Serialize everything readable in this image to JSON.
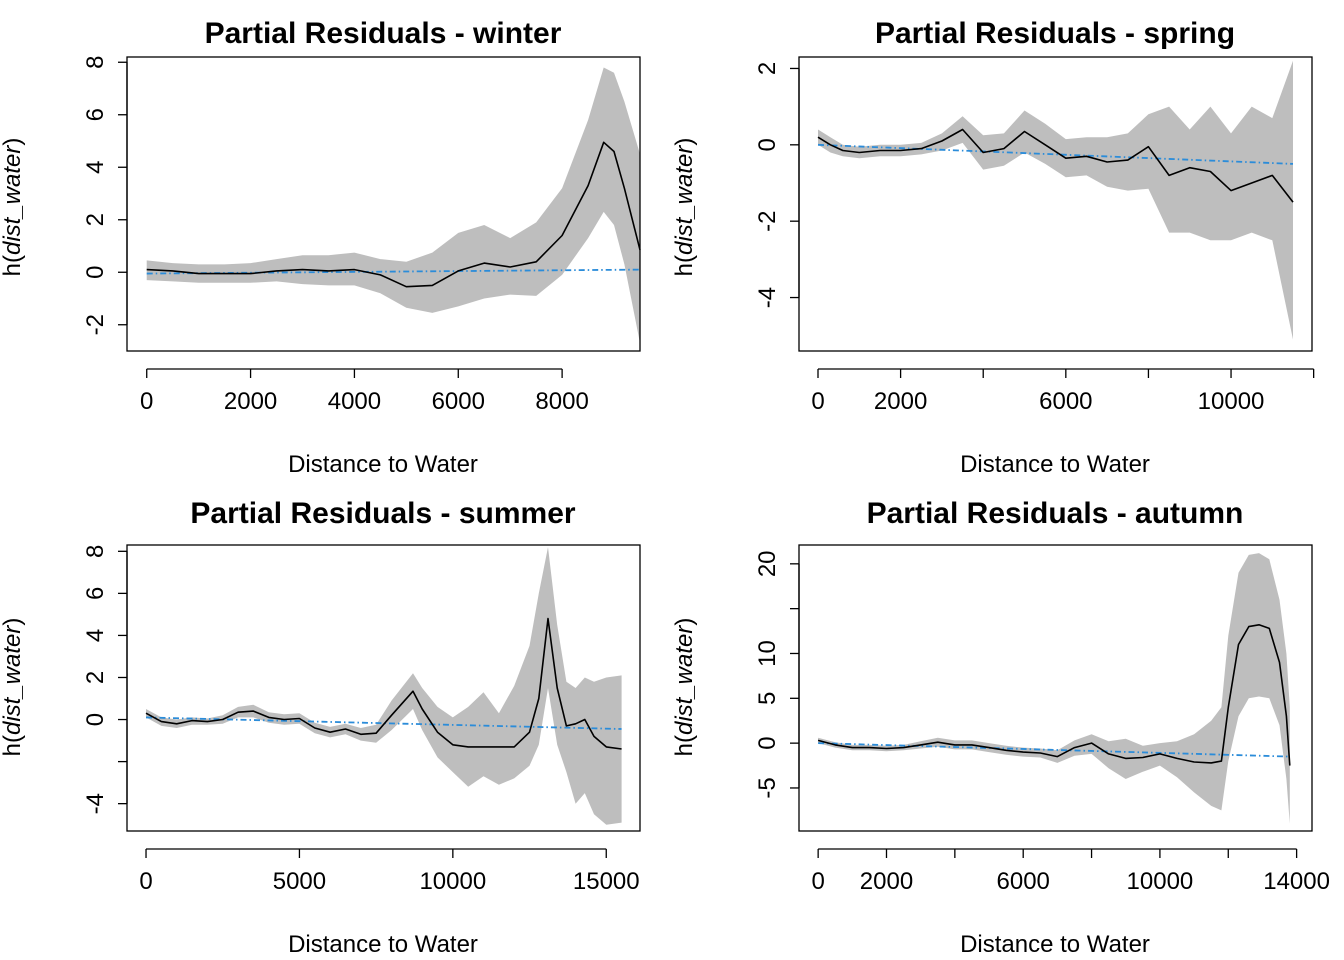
{
  "chart_data": [
    {
      "type": "line",
      "title": "Partial Residuals - winter",
      "xlabel": "Distance to Water",
      "ylabel": {
        "prefix": "h(",
        "var": "dist_water",
        "suffix": ")"
      },
      "xlim": [
        -380,
        9500
      ],
      "ylim": [
        -3.0,
        8.2
      ],
      "xticks": [
        0,
        2000,
        4000,
        6000,
        8000
      ],
      "yticks": [
        -2,
        0,
        2,
        4,
        6,
        8
      ],
      "series": [
        {
          "role": "fit",
          "x": [
            0,
            500,
            1000,
            1500,
            2000,
            2500,
            3000,
            3500,
            4000,
            4500,
            5000,
            5500,
            6000,
            6500,
            7000,
            7500,
            8000,
            8500,
            8800,
            9000,
            9200,
            9500
          ],
          "values": [
            0.1,
            0.05,
            -0.05,
            -0.05,
            -0.05,
            0.05,
            0.1,
            0.05,
            0.1,
            -0.1,
            -0.55,
            -0.5,
            0.05,
            0.35,
            0.2,
            0.4,
            1.4,
            3.3,
            4.95,
            4.6,
            3.2,
            0.85
          ]
        },
        {
          "role": "band-upper",
          "x": [
            0,
            500,
            1000,
            1500,
            2000,
            2500,
            3000,
            3500,
            4000,
            4500,
            5000,
            5500,
            6000,
            6500,
            7000,
            7500,
            8000,
            8500,
            8800,
            9000,
            9200,
            9500
          ],
          "values": [
            0.45,
            0.35,
            0.3,
            0.3,
            0.35,
            0.5,
            0.65,
            0.65,
            0.75,
            0.5,
            0.4,
            0.75,
            1.5,
            1.8,
            1.3,
            1.9,
            3.2,
            5.8,
            7.8,
            7.6,
            6.5,
            4.5
          ]
        },
        {
          "role": "band-lower",
          "x": [
            0,
            500,
            1000,
            1500,
            2000,
            2500,
            3000,
            3500,
            4000,
            4500,
            5000,
            5500,
            6000,
            6500,
            7000,
            7500,
            8000,
            8500,
            8800,
            9000,
            9200,
            9500
          ],
          "values": [
            -0.3,
            -0.35,
            -0.4,
            -0.4,
            -0.4,
            -0.35,
            -0.45,
            -0.5,
            -0.5,
            -0.8,
            -1.35,
            -1.55,
            -1.3,
            -1.0,
            -0.85,
            -0.9,
            -0.1,
            1.3,
            2.3,
            1.8,
            0.3,
            -2.7
          ]
        },
        {
          "role": "linear",
          "x": [
            0,
            9500
          ],
          "values": [
            -0.05,
            0.1
          ]
        }
      ]
    },
    {
      "type": "line",
      "title": "Partial Residuals - spring",
      "xlabel": "Distance to Water",
      "ylabel": {
        "prefix": "h(",
        "var": "dist_water",
        "suffix": ")"
      },
      "xlim": [
        -460,
        11960
      ],
      "ylim": [
        -5.4,
        2.3
      ],
      "xticks": [
        0,
        2000,
        4000,
        6000,
        8000,
        10000,
        12000
      ],
      "xtick_labels": [
        "0",
        "2000",
        "",
        "6000",
        "",
        "10000",
        ""
      ],
      "yticks": [
        -4,
        -2,
        0,
        2
      ],
      "series": [
        {
          "role": "fit",
          "x": [
            0,
            300,
            600,
            1000,
            1500,
            2000,
            2500,
            3000,
            3500,
            4000,
            4500,
            5000,
            5500,
            6000,
            6500,
            7000,
            7500,
            8000,
            8500,
            9000,
            9500,
            10000,
            10500,
            11000,
            11500
          ],
          "values": [
            0.2,
            0.0,
            -0.15,
            -0.2,
            -0.15,
            -0.15,
            -0.1,
            0.1,
            0.4,
            -0.2,
            -0.1,
            0.35,
            0.0,
            -0.35,
            -0.3,
            -0.45,
            -0.4,
            -0.05,
            -0.8,
            -0.6,
            -0.7,
            -1.2,
            -1.0,
            -0.8,
            -1.5
          ]
        },
        {
          "role": "band-upper",
          "x": [
            0,
            300,
            600,
            1000,
            1500,
            2000,
            2500,
            3000,
            3500,
            4000,
            4500,
            5000,
            5500,
            6000,
            6500,
            7000,
            7500,
            8000,
            8500,
            9000,
            9500,
            10000,
            10500,
            11000,
            11500
          ],
          "values": [
            0.4,
            0.2,
            0.0,
            -0.05,
            0.0,
            0.0,
            0.05,
            0.3,
            0.75,
            0.25,
            0.3,
            0.9,
            0.55,
            0.15,
            0.2,
            0.2,
            0.3,
            0.8,
            1.0,
            0.4,
            1.0,
            0.3,
            1.0,
            0.7,
            2.2
          ]
        },
        {
          "role": "band-lower",
          "x": [
            0,
            300,
            600,
            1000,
            1500,
            2000,
            2500,
            3000,
            3500,
            4000,
            4500,
            5000,
            5500,
            6000,
            6500,
            7000,
            7500,
            8000,
            8500,
            9000,
            9500,
            10000,
            10500,
            11000,
            11500
          ],
          "values": [
            0.0,
            -0.2,
            -0.3,
            -0.35,
            -0.3,
            -0.3,
            -0.25,
            -0.15,
            0.05,
            -0.65,
            -0.55,
            -0.2,
            -0.5,
            -0.85,
            -0.8,
            -1.1,
            -1.2,
            -1.15,
            -2.3,
            -2.3,
            -2.5,
            -2.5,
            -2.3,
            -2.5,
            -5.1
          ]
        },
        {
          "role": "linear",
          "x": [
            0,
            11500
          ],
          "values": [
            0.0,
            -0.5
          ]
        }
      ]
    },
    {
      "type": "line",
      "title": "Partial Residuals - summer",
      "xlabel": "Distance to Water",
      "ylabel": {
        "prefix": "h(",
        "var": "dist_water",
        "suffix": ")"
      },
      "xlim": [
        -620,
        16100
      ],
      "ylim": [
        -5.3,
        8.3
      ],
      "xticks": [
        0,
        5000,
        10000,
        15000
      ],
      "yticks": [
        -4,
        -2,
        0,
        2,
        4,
        6,
        8
      ],
      "ytick_labels": [
        "-4",
        "",
        "0",
        "2",
        "4",
        "6",
        "8"
      ],
      "series": [
        {
          "role": "fit",
          "x": [
            0,
            500,
            1000,
            1500,
            2000,
            2500,
            3000,
            3500,
            4000,
            4500,
            5000,
            5500,
            6000,
            6500,
            7000,
            7500,
            8000,
            8700,
            9000,
            9500,
            10000,
            10500,
            11000,
            11500,
            12000,
            12500,
            12800,
            13100,
            13400,
            13700,
            14000,
            14300,
            14600,
            15000,
            15500
          ],
          "values": [
            0.3,
            -0.1,
            -0.2,
            -0.05,
            -0.1,
            0.0,
            0.35,
            0.4,
            0.1,
            0.0,
            0.05,
            -0.4,
            -0.6,
            -0.45,
            -0.7,
            -0.65,
            0.2,
            1.35,
            0.5,
            -0.6,
            -1.2,
            -1.3,
            -1.3,
            -1.3,
            -1.3,
            -0.6,
            1.0,
            4.8,
            1.5,
            -0.3,
            -0.2,
            0.0,
            -0.8,
            -1.3,
            -1.4
          ]
        },
        {
          "role": "band-upper",
          "x": [
            0,
            500,
            1000,
            1500,
            2000,
            2500,
            3000,
            3500,
            4000,
            4500,
            5000,
            5500,
            6000,
            6500,
            7000,
            7500,
            8000,
            8700,
            9000,
            9500,
            10000,
            10500,
            11000,
            11500,
            12000,
            12500,
            12800,
            13100,
            13400,
            13700,
            14000,
            14300,
            14600,
            15000,
            15500
          ],
          "values": [
            0.5,
            0.1,
            0.0,
            0.1,
            0.05,
            0.2,
            0.6,
            0.7,
            0.35,
            0.25,
            0.3,
            -0.15,
            -0.35,
            -0.2,
            -0.4,
            -0.25,
            0.9,
            2.2,
            1.5,
            0.6,
            0.1,
            0.6,
            1.3,
            0.3,
            1.6,
            3.5,
            6.0,
            8.2,
            4.5,
            1.8,
            1.5,
            2.0,
            1.8,
            2.0,
            2.1
          ]
        },
        {
          "role": "band-lower",
          "x": [
            0,
            500,
            1000,
            1500,
            2000,
            2500,
            3000,
            3500,
            4000,
            4500,
            5000,
            5500,
            6000,
            6500,
            7000,
            7500,
            8000,
            8700,
            9000,
            9500,
            10000,
            10500,
            11000,
            11500,
            12000,
            12500,
            12800,
            13100,
            13400,
            13700,
            14000,
            14300,
            14600,
            15000,
            15500
          ],
          "values": [
            0.1,
            -0.3,
            -0.4,
            -0.25,
            -0.25,
            -0.2,
            0.1,
            0.1,
            -0.15,
            -0.25,
            -0.2,
            -0.65,
            -0.85,
            -0.7,
            -1.0,
            -1.1,
            -0.5,
            0.5,
            -0.5,
            -1.8,
            -2.5,
            -3.2,
            -2.7,
            -3.1,
            -2.8,
            -2.2,
            -1.2,
            1.5,
            -1.2,
            -2.5,
            -4.0,
            -3.5,
            -4.5,
            -5.0,
            -4.9
          ]
        },
        {
          "role": "linear",
          "x": [
            0,
            15500
          ],
          "values": [
            0.1,
            -0.45
          ]
        }
      ]
    },
    {
      "type": "line",
      "title": "Partial Residuals - autumn",
      "xlabel": "Distance to Water",
      "ylabel": {
        "prefix": "h(",
        "var": "dist_water",
        "suffix": ")"
      },
      "xlim": [
        -560,
        14450
      ],
      "ylim": [
        -9.8,
        22.1
      ],
      "xticks": [
        0,
        2000,
        4000,
        6000,
        8000,
        10000,
        12000,
        14000
      ],
      "xtick_labels": [
        "0",
        "2000",
        "",
        "6000",
        "",
        "10000",
        "",
        "14000"
      ],
      "yticks": [
        -5,
        0,
        5,
        10,
        15,
        20
      ],
      "ytick_labels": [
        "-5",
        "0",
        "5",
        "10",
        "",
        "20"
      ],
      "series": [
        {
          "role": "fit",
          "x": [
            0,
            500,
            1000,
            1500,
            2000,
            2500,
            3000,
            3500,
            4000,
            4500,
            5000,
            5500,
            6000,
            6500,
            7000,
            7500,
            8000,
            8500,
            9000,
            9500,
            10000,
            10500,
            11000,
            11500,
            11800,
            12000,
            12300,
            12600,
            12900,
            13200,
            13500,
            13700,
            13800
          ],
          "values": [
            0.3,
            -0.2,
            -0.5,
            -0.5,
            -0.6,
            -0.5,
            -0.2,
            0.1,
            -0.2,
            -0.2,
            -0.5,
            -0.8,
            -1.0,
            -1.1,
            -1.5,
            -0.5,
            0.0,
            -1.2,
            -1.7,
            -1.6,
            -1.2,
            -1.7,
            -2.1,
            -2.2,
            -2.0,
            4.0,
            11.0,
            13.0,
            13.2,
            12.8,
            9.0,
            3.0,
            -2.5
          ]
        },
        {
          "role": "band-upper",
          "x": [
            0,
            500,
            1000,
            1500,
            2000,
            2500,
            3000,
            3500,
            4000,
            4500,
            5000,
            5500,
            6000,
            6500,
            7000,
            7500,
            8000,
            8500,
            9000,
            9500,
            10000,
            10500,
            11000,
            11500,
            11800,
            12000,
            12300,
            12600,
            12900,
            13200,
            13500,
            13700,
            13800
          ],
          "values": [
            0.6,
            0.1,
            -0.2,
            -0.2,
            -0.3,
            -0.2,
            0.2,
            0.6,
            0.3,
            0.3,
            0.0,
            -0.3,
            -0.5,
            -0.6,
            -0.8,
            0.3,
            1.0,
            0.2,
            0.5,
            -0.3,
            0.0,
            0.2,
            1.0,
            2.5,
            4.0,
            12.0,
            19.0,
            21.0,
            21.2,
            20.5,
            16.0,
            10.0,
            4.0
          ]
        },
        {
          "role": "band-lower",
          "x": [
            0,
            500,
            1000,
            1500,
            2000,
            2500,
            3000,
            3500,
            4000,
            4500,
            5000,
            5500,
            6000,
            6500,
            7000,
            7500,
            8000,
            8500,
            9000,
            9500,
            10000,
            10500,
            11000,
            11500,
            11800,
            12000,
            12300,
            12600,
            12900,
            13200,
            13500,
            13700,
            13800
          ],
          "values": [
            0.0,
            -0.5,
            -0.8,
            -0.8,
            -0.9,
            -0.8,
            -0.6,
            -0.4,
            -0.7,
            -0.7,
            -1.0,
            -1.3,
            -1.5,
            -1.6,
            -2.2,
            -1.4,
            -1.2,
            -2.8,
            -4.0,
            -3.2,
            -2.5,
            -3.8,
            -5.5,
            -7.0,
            -7.5,
            -2.0,
            3.0,
            5.0,
            5.2,
            5.0,
            2.0,
            -4.0,
            -9.0
          ]
        },
        {
          "role": "linear",
          "x": [
            0,
            13800
          ],
          "values": [
            0.0,
            -1.5
          ]
        }
      ]
    }
  ],
  "colors": {
    "band": "#bebebe",
    "fit": "#000000",
    "linear": "#2b8cd9",
    "axis": "#000000"
  }
}
